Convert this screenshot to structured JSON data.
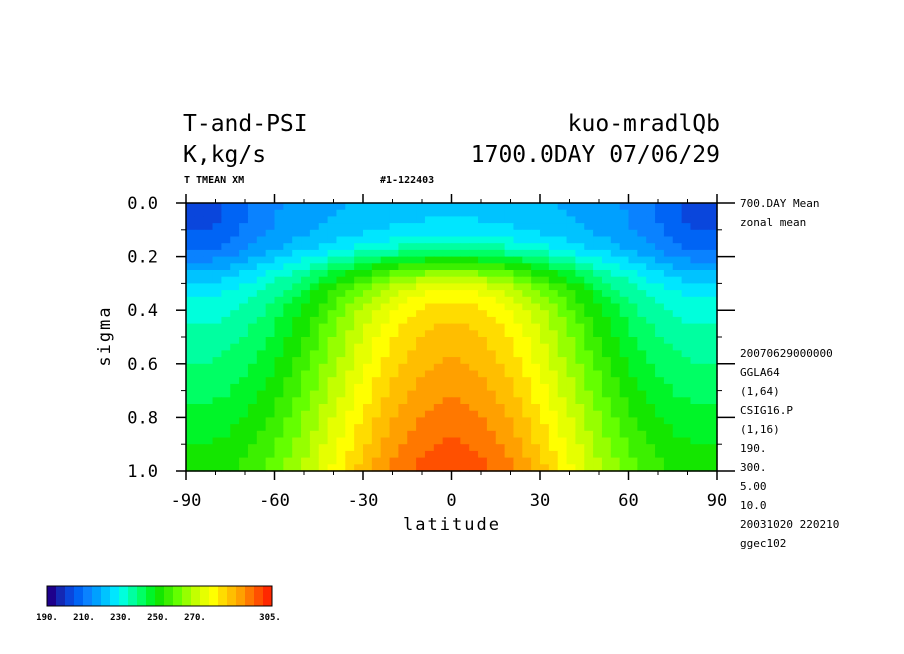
{
  "header": {
    "title_left": "T-and-PSI",
    "title_right": "kuo-mradlQb",
    "units": "K,kg/s",
    "date": "1700.0DAY 07/06/29",
    "var_label": "T TMEAN XM",
    "run_id": "#1-122403"
  },
  "side_info": {
    "top": [
      "700.DAY Mean",
      "zonal mean"
    ],
    "bottom": [
      "20070629000000",
      "GGLA64",
      "(1,64)",
      "CSIG16.P",
      "(1,16)",
      "190.",
      "300.",
      "5.00",
      "10.0",
      "20031020 220210",
      "ggec102"
    ]
  },
  "chart_data": {
    "type": "heatmap",
    "xlabel": "latitude",
    "ylabel": "sigma",
    "xlim": [
      -90,
      90
    ],
    "ylim": [
      0.0,
      1.0
    ],
    "y_inverted": true,
    "x_ticks": [
      "-90",
      "-60",
      "-30",
      "0",
      "30",
      "60",
      "90"
    ],
    "y_ticks": [
      "0.0",
      "0.2",
      "0.4",
      "0.6",
      "0.8",
      "1.0"
    ],
    "x": [
      -87,
      -81,
      -75,
      -69,
      -63,
      -57,
      -51,
      -45,
      -39,
      -33,
      -27,
      -21,
      -15,
      -9,
      -3,
      3,
      9,
      15,
      21,
      27,
      33,
      39,
      45,
      51,
      57,
      63,
      69,
      75,
      81,
      87
    ],
    "y": [
      0.025,
      0.075,
      0.125,
      0.175,
      0.225,
      0.275,
      0.325,
      0.375,
      0.425,
      0.475,
      0.525,
      0.575,
      0.625,
      0.675,
      0.725,
      0.775,
      0.825,
      0.875,
      0.925,
      0.975
    ],
    "value_units": "K",
    "color_levels": [
      190,
      195,
      200,
      205,
      210,
      215,
      220,
      225,
      230,
      235,
      240,
      245,
      250,
      255,
      260,
      265,
      270,
      275,
      280,
      285,
      290,
      295,
      300,
      305
    ],
    "colorbar_labels": [
      "190.",
      "210.",
      "230.",
      "250.",
      "270.",
      "305."
    ],
    "colorbar_colors": [
      "#1e008c",
      "#1428b4",
      "#0a46dc",
      "#0064f5",
      "#0a82ff",
      "#00a0ff",
      "#00c3ff",
      "#00e6ff",
      "#00ffdc",
      "#00ffa0",
      "#00ff64",
      "#00f528",
      "#14e600",
      "#3cf000",
      "#64ff00",
      "#96ff00",
      "#c3ff00",
      "#e6ff00",
      "#ffff00",
      "#ffdc00",
      "#ffbe00",
      "#ffa000",
      "#ff7800",
      "#ff5000",
      "#ff2800"
    ]
  }
}
